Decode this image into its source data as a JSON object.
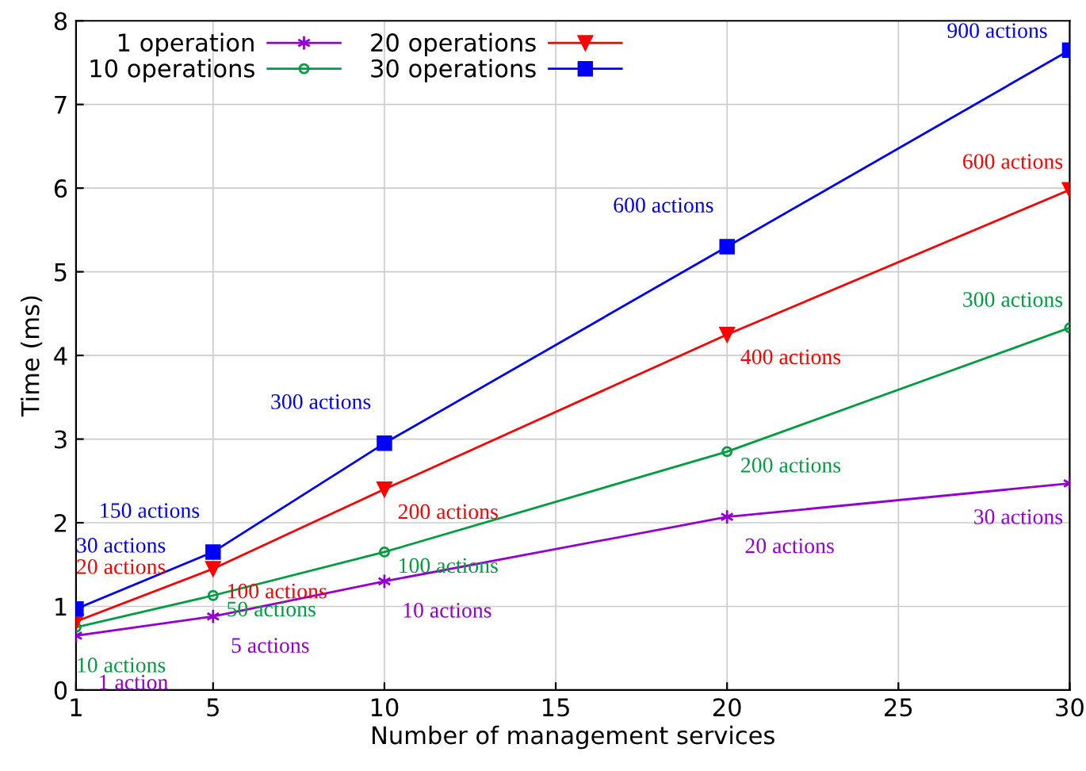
{
  "chart_data": {
    "type": "line",
    "xlabel": "Number of management services",
    "ylabel": "Time (ms)",
    "x": [
      1,
      5,
      10,
      20,
      30
    ],
    "series": [
      {
        "name": "1 operation",
        "color": "#9400d3",
        "marker": "cross",
        "values": [
          0.65,
          0.88,
          1.3,
          2.07,
          2.47
        ]
      },
      {
        "name": "10 operations",
        "color": "#009e40",
        "marker": "circle",
        "values": [
          0.75,
          1.13,
          1.65,
          2.85,
          4.33
        ]
      },
      {
        "name": "20 operations",
        "color": "#ff0000",
        "marker": "triangle",
        "values": [
          0.82,
          1.45,
          2.4,
          4.25,
          5.98
        ]
      },
      {
        "name": "30 operations",
        "color": "#0000ff",
        "marker": "square",
        "values": [
          0.97,
          1.65,
          2.95,
          5.3,
          7.65
        ]
      }
    ],
    "annotations": [
      {
        "text": "1 action",
        "x": 1,
        "y": 0.65
      },
      {
        "text": "5 actions",
        "x": 5,
        "y": 0.88
      },
      {
        "text": "10 actions",
        "x": 10,
        "y": 1.3
      },
      {
        "text": "20 actions",
        "x": 20,
        "y": 2.07
      },
      {
        "text": "30 actions",
        "x": 30,
        "y": 2.47
      },
      {
        "text": "10 actions",
        "x": 1,
        "y": 0.75
      },
      {
        "text": "50 actions",
        "x": 5,
        "y": 1.13
      },
      {
        "text": "100 actions",
        "x": 10,
        "y": 1.65
      },
      {
        "text": "200 actions",
        "x": 20,
        "y": 2.85
      },
      {
        "text": "300 actions",
        "x": 30,
        "y": 4.33
      },
      {
        "text": "20 actions",
        "x": 1,
        "y": 0.82
      },
      {
        "text": "100 actions",
        "x": 5,
        "y": 1.45
      },
      {
        "text": "200 actions",
        "x": 10,
        "y": 2.4
      },
      {
        "text": "400 actions",
        "x": 20,
        "y": 4.25
      },
      {
        "text": "600 actions",
        "x": 30,
        "y": 5.98
      },
      {
        "text": "30 actions",
        "x": 1,
        "y": 0.97
      },
      {
        "text": "150 actions",
        "x": 5,
        "y": 1.65
      },
      {
        "text": "300 actions",
        "x": 10,
        "y": 2.95
      },
      {
        "text": "600 actions",
        "x": 20,
        "y": 5.3
      },
      {
        "text": "900 actions",
        "x": 30,
        "y": 7.65
      }
    ],
    "xlim": [
      1,
      30
    ],
    "xticks": [
      1,
      5,
      10,
      15,
      20,
      25,
      30
    ],
    "ylim": [
      0,
      8
    ],
    "yticks": [
      0,
      1,
      2,
      3,
      4,
      5,
      6,
      7,
      8
    ],
    "grid": true,
    "legend": "top left",
    "line_style": "solid"
  }
}
